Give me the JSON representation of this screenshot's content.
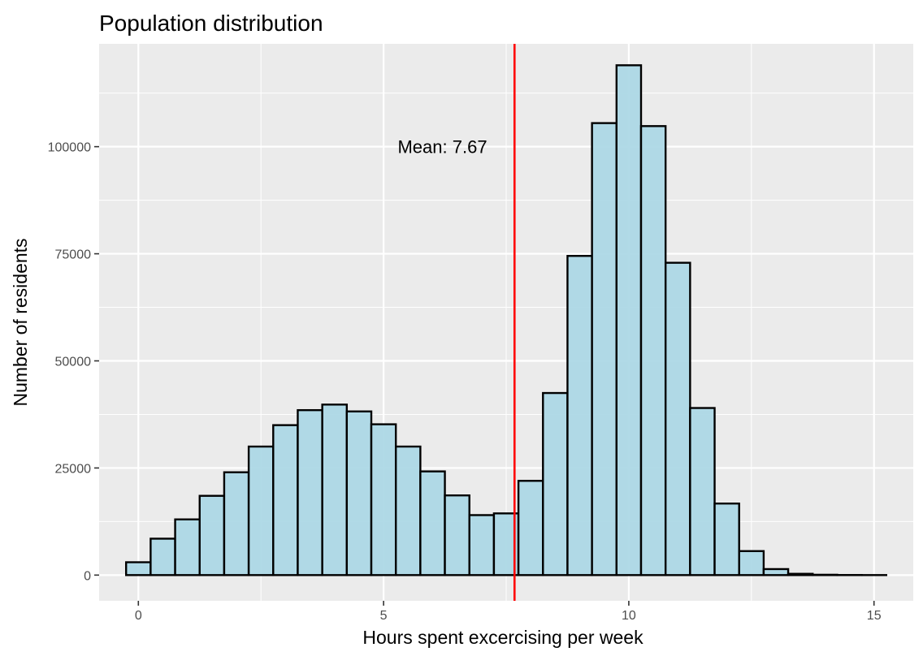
{
  "chart_data": {
    "type": "bar",
    "title": "Population distribution",
    "xlabel": "Hours spent excercising per week",
    "ylabel": "Number of residents",
    "xlim": [
      -0.8,
      15.8
    ],
    "ylim": [
      -6000,
      124000
    ],
    "x_ticks": [
      0,
      5,
      10,
      15
    ],
    "x_tick_labels": [
      "0",
      "5",
      "10",
      "15"
    ],
    "y_ticks": [
      0,
      25000,
      50000,
      75000,
      100000
    ],
    "y_tick_labels": [
      "0",
      "25000",
      "50000",
      "75000",
      "100000"
    ],
    "grid": true,
    "bin_width": 0.5,
    "bins": [
      {
        "x0": -0.25,
        "x1": 0.25,
        "value": 3000
      },
      {
        "x0": 0.25,
        "x1": 0.75,
        "value": 8500
      },
      {
        "x0": 0.75,
        "x1": 1.25,
        "value": 13000
      },
      {
        "x0": 1.25,
        "x1": 1.75,
        "value": 18500
      },
      {
        "x0": 1.75,
        "x1": 2.25,
        "value": 24000
      },
      {
        "x0": 2.25,
        "x1": 2.75,
        "value": 30000
      },
      {
        "x0": 2.75,
        "x1": 3.25,
        "value": 35000
      },
      {
        "x0": 3.25,
        "x1": 3.75,
        "value": 38500
      },
      {
        "x0": 3.75,
        "x1": 4.25,
        "value": 39800
      },
      {
        "x0": 4.25,
        "x1": 4.75,
        "value": 38200
      },
      {
        "x0": 4.75,
        "x1": 5.25,
        "value": 35200
      },
      {
        "x0": 5.25,
        "x1": 5.75,
        "value": 30000
      },
      {
        "x0": 5.75,
        "x1": 6.25,
        "value": 24200
      },
      {
        "x0": 6.25,
        "x1": 6.75,
        "value": 18600
      },
      {
        "x0": 6.75,
        "x1": 7.25,
        "value": 14000
      },
      {
        "x0": 7.25,
        "x1": 7.75,
        "value": 14400
      },
      {
        "x0": 7.75,
        "x1": 8.25,
        "value": 22000
      },
      {
        "x0": 8.25,
        "x1": 8.75,
        "value": 42500
      },
      {
        "x0": 8.75,
        "x1": 9.25,
        "value": 74500
      },
      {
        "x0": 9.25,
        "x1": 9.75,
        "value": 105500
      },
      {
        "x0": 9.75,
        "x1": 10.25,
        "value": 119000
      },
      {
        "x0": 10.25,
        "x1": 10.75,
        "value": 104800
      },
      {
        "x0": 10.75,
        "x1": 11.25,
        "value": 72900
      },
      {
        "x0": 11.25,
        "x1": 11.75,
        "value": 39000
      },
      {
        "x0": 11.75,
        "x1": 12.25,
        "value": 16700
      },
      {
        "x0": 12.25,
        "x1": 12.75,
        "value": 5600
      },
      {
        "x0": 12.75,
        "x1": 13.25,
        "value": 1400
      },
      {
        "x0": 13.25,
        "x1": 13.75,
        "value": 300
      },
      {
        "x0": 13.75,
        "x1": 14.25,
        "value": 80
      },
      {
        "x0": 14.25,
        "x1": 14.75,
        "value": 20
      },
      {
        "x0": 14.75,
        "x1": 15.25,
        "value": 5
      }
    ],
    "mean_line": {
      "x": 7.67,
      "label": "Mean: 7.67",
      "label_x": 6.2,
      "label_y": 100000
    },
    "colors": {
      "panel": "#ebebeb",
      "grid_major": "#ffffff",
      "bar_fill": "#add8e6",
      "bar_stroke": "#000000",
      "mean_line": "#ff0000",
      "tick": "#333333"
    }
  }
}
